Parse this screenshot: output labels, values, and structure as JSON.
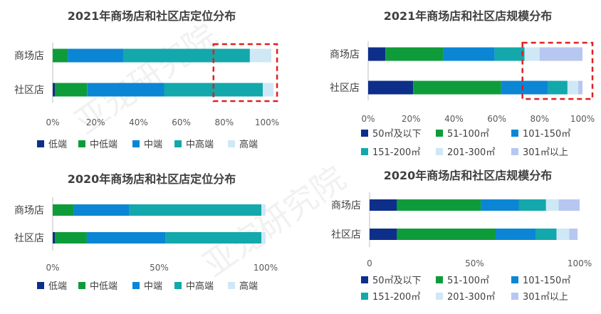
{
  "colors": {
    "low": "#0d2f8a",
    "midlow": "#0e9c3a",
    "mid": "#0b86d4",
    "midhigh": "#13a8ab",
    "high": "#cfe8f5",
    "s50": "#0d2f8a",
    "s51_100": "#0e9c3a",
    "s101_150": "#0b86d4",
    "s151_200": "#13a8ab",
    "s201_300": "#cfe8f5",
    "s301": "#b8c6f2",
    "highlight": "#e02020"
  },
  "watermark": [
    "亚宠研究院",
    "亚宠研究院"
  ],
  "chart_data": [
    {
      "type": "bar",
      "orientation": "horizontal",
      "stacked": "percent",
      "title": "2021年商场店和社区店定位分布",
      "categories": [
        "商场店",
        "社区店"
      ],
      "series": [
        {
          "name": "低端",
          "color_key": "low",
          "values": [
            0,
            1
          ]
        },
        {
          "name": "中低端",
          "color_key": "midlow",
          "values": [
            7,
            15
          ]
        },
        {
          "name": "中端",
          "color_key": "mid",
          "values": [
            26,
            36
          ]
        },
        {
          "name": "中高端",
          "color_key": "midhigh",
          "values": [
            59,
            46
          ]
        },
        {
          "name": "高端",
          "color_key": "high",
          "values": [
            10,
            5
          ]
        }
      ],
      "xticks": [
        "0%",
        "20%",
        "40%",
        "60%",
        "80%",
        "100%"
      ],
      "xlim": [
        0,
        100
      ],
      "highlight_range": [
        75,
        105
      ],
      "legend": "bottom"
    },
    {
      "type": "bar",
      "orientation": "horizontal",
      "stacked": "percent",
      "title": "2021年商场店和社区店规模分布",
      "categories": [
        "商场店",
        "社区店"
      ],
      "series": [
        {
          "name": "50㎡及以下",
          "color_key": "s50",
          "values": [
            8,
            21
          ]
        },
        {
          "name": "51-100㎡",
          "color_key": "s51_100",
          "values": [
            27,
            41
          ]
        },
        {
          "name": "101-150㎡",
          "color_key": "s101_150",
          "values": [
            24,
            22
          ]
        },
        {
          "name": "151-200㎡",
          "color_key": "s151_200",
          "values": [
            14,
            9
          ]
        },
        {
          "name": "201-300㎡",
          "color_key": "s201_300",
          "values": [
            7,
            5
          ]
        },
        {
          "name": "301㎡以上",
          "color_key": "s301",
          "values": [
            20,
            2
          ]
        }
      ],
      "xticks": [
        "0%",
        "20%",
        "40%",
        "60%",
        "80%",
        "100%"
      ],
      "xlim": [
        0,
        100
      ],
      "highlight_range": [
        72,
        105
      ],
      "legend": "bottom"
    },
    {
      "type": "bar",
      "orientation": "horizontal",
      "stacked": "percent",
      "title": "2020年商场店和社区店定位分布",
      "categories": [
        "商场店",
        "社区店"
      ],
      "series": [
        {
          "name": "低端",
          "color_key": "low",
          "values": [
            0,
            1
          ]
        },
        {
          "name": "中低端",
          "color_key": "midlow",
          "values": [
            10,
            15
          ]
        },
        {
          "name": "中端",
          "color_key": "mid",
          "values": [
            26,
            37
          ]
        },
        {
          "name": "中高端",
          "color_key": "midhigh",
          "values": [
            62,
            45
          ]
        },
        {
          "name": "高端",
          "color_key": "high",
          "values": [
            2,
            2
          ]
        }
      ],
      "xticks": [
        "0%",
        "50%",
        "100%"
      ],
      "xlim": [
        0,
        100
      ],
      "legend": "bottom"
    },
    {
      "type": "bar",
      "orientation": "horizontal",
      "stacked": "percent",
      "title": "2020年商场店和社区店规模分布",
      "categories": [
        "商场店",
        "社区店"
      ],
      "series": [
        {
          "name": "50㎡及以下",
          "color_key": "s50",
          "values": [
            13,
            13
          ]
        },
        {
          "name": "51-100㎡",
          "color_key": "s51_100",
          "values": [
            40,
            47
          ]
        },
        {
          "name": "101-150㎡",
          "color_key": "s101_150",
          "values": [
            18,
            19
          ]
        },
        {
          "name": "151-200㎡",
          "color_key": "s151_200",
          "values": [
            13,
            10
          ]
        },
        {
          "name": "201-300㎡",
          "color_key": "s201_300",
          "values": [
            6,
            6
          ]
        },
        {
          "name": "301㎡以上",
          "color_key": "s301",
          "values": [
            10,
            4
          ]
        }
      ],
      "xticks": [
        "0",
        "50%",
        "100%"
      ],
      "xlim": [
        0,
        100
      ],
      "legend": "bottom"
    }
  ]
}
